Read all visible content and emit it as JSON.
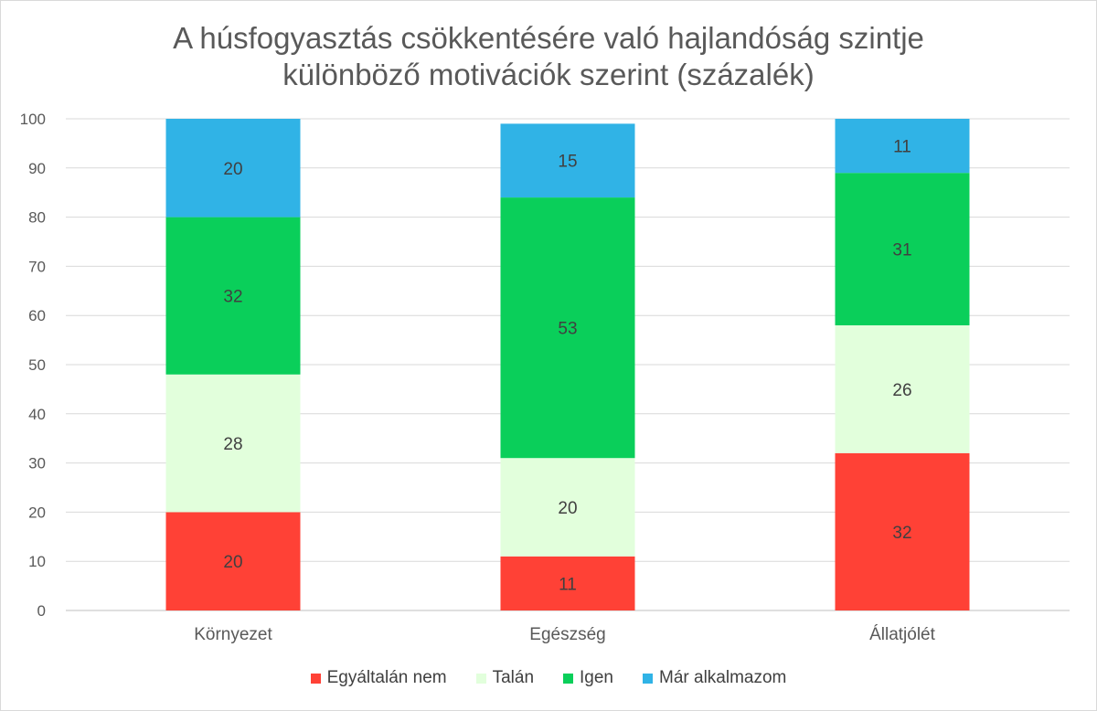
{
  "chart_data": {
    "type": "bar",
    "stacked": true,
    "title_lines": [
      "A húsfogyasztás csökkentésére való hajlandóság szintje",
      "különböző motivációk szerint (százalék)"
    ],
    "categories": [
      "Környezet",
      "Egészség",
      "Állatjólét"
    ],
    "series": [
      {
        "name": "Egyáltalán nem",
        "color": "#ff4136",
        "values": [
          20,
          11,
          32
        ],
        "labels": [
          "20",
          "11",
          "32"
        ]
      },
      {
        "name": "Talán",
        "color": "#e2ffdc",
        "values": [
          28,
          20,
          26
        ],
        "labels": [
          "28",
          "20",
          "26"
        ]
      },
      {
        "name": "Igen",
        "color": "#0acf5a",
        "values": [
          32,
          53,
          31
        ],
        "labels": [
          "32",
          "53",
          "31"
        ]
      },
      {
        "name": "Már alkalmazom",
        "color": "#30b3e6",
        "values": [
          20,
          15,
          11
        ],
        "labels": [
          "20",
          "15",
          "11"
        ]
      }
    ],
    "ylim": [
      0,
      100
    ],
    "yticks": [
      0,
      10,
      20,
      30,
      40,
      50,
      60,
      70,
      80,
      90,
      100
    ],
    "grid": true,
    "legend_position": "bottom"
  }
}
